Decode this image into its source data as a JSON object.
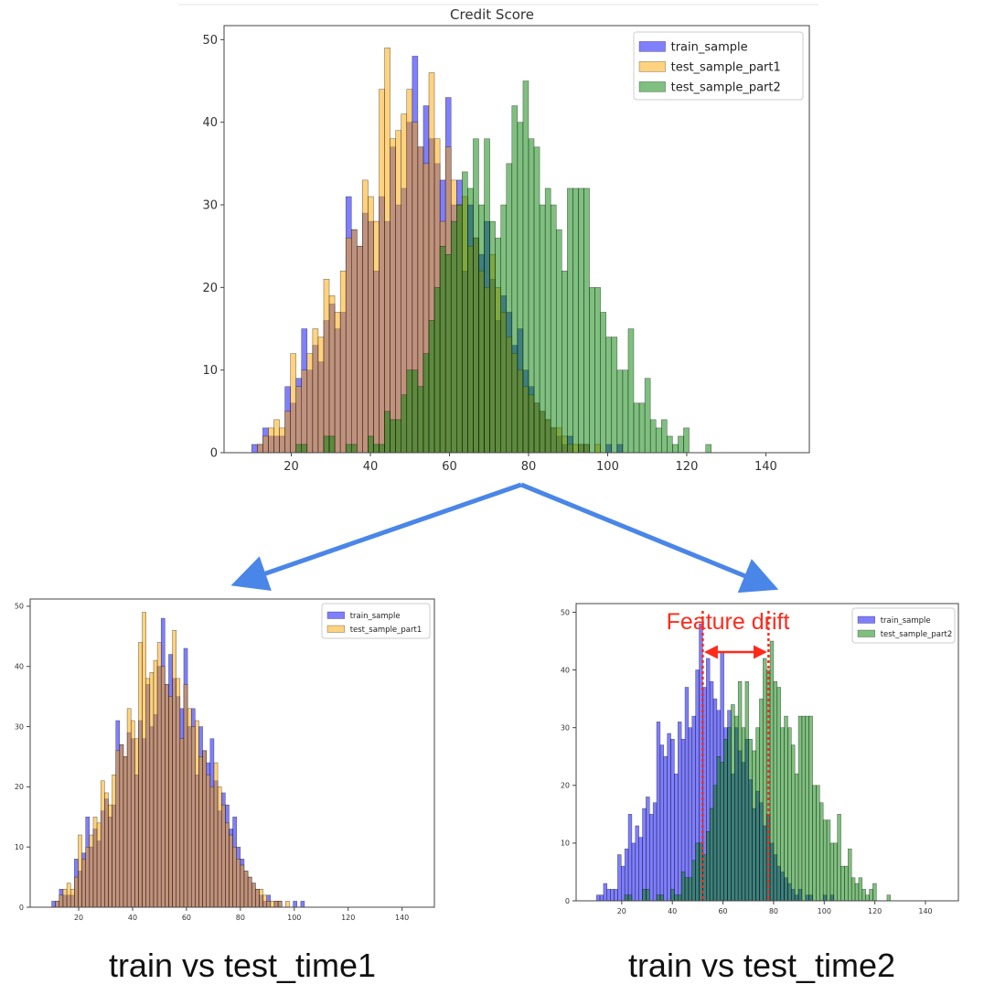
{
  "colors": {
    "train_sample": "#0000ff",
    "test_sample_part1": "#ffa500",
    "test_sample_part2": "#008000",
    "arrow": "#4a86e8",
    "drift": "#ff2a1a"
  },
  "series_data": {
    "bin_start": 10,
    "bin_width": 1.4,
    "train_sample": [
      1,
      1,
      3,
      2,
      2,
      2,
      8,
      6,
      9,
      15,
      10,
      13,
      11,
      16,
      18,
      15,
      17,
      31,
      27,
      25,
      29,
      28,
      22,
      31,
      28,
      37,
      30,
      32,
      40,
      48,
      37,
      42,
      38,
      35,
      33,
      43,
      30,
      33,
      22,
      30,
      26,
      24,
      28,
      21,
      16,
      19,
      17,
      13,
      15,
      10,
      8,
      6,
      5,
      4,
      3,
      2,
      1,
      2,
      0,
      1,
      1,
      0,
      0,
      0,
      1,
      0,
      1
    ],
    "test_sample_part1": [
      0,
      1,
      2,
      3,
      4,
      3,
      5,
      12,
      8,
      10,
      12,
      15,
      14,
      21,
      19,
      17,
      22,
      26,
      27,
      25,
      33,
      31,
      28,
      44,
      49,
      38,
      39,
      41,
      44,
      40,
      37,
      35,
      46,
      38,
      28,
      37,
      33,
      30,
      31,
      25,
      26,
      22,
      20,
      24,
      20,
      17,
      14,
      12,
      10,
      8,
      7,
      6,
      5,
      4,
      3,
      3,
      2,
      1,
      1,
      1,
      1,
      0,
      1
    ],
    "test_sample_part2": [
      0,
      0,
      0,
      0,
      0,
      0,
      0,
      0,
      1,
      1,
      0,
      0,
      0,
      2,
      2,
      0,
      0,
      1,
      1,
      0,
      0,
      2,
      1,
      1,
      5,
      4,
      4,
      7,
      10,
      10,
      8,
      12,
      16,
      20,
      25,
      24,
      28,
      30,
      34,
      32,
      38,
      30,
      38,
      28,
      26,
      30,
      35,
      42,
      40,
      45,
      38,
      37,
      30,
      32,
      30,
      27,
      22,
      32,
      32,
      32,
      32,
      20,
      20,
      17,
      14,
      14,
      10,
      10,
      15,
      6,
      6,
      9,
      4,
      3,
      4,
      2,
      1,
      2,
      3,
      0,
      0,
      0,
      1
    ]
  },
  "chart_data": [
    {
      "type": "bar",
      "title": "Credit Score",
      "series": [
        "train_sample",
        "test_sample_part1",
        "test_sample_part2"
      ],
      "legend": [
        "train_sample",
        "test_sample_part1",
        "test_sample_part2"
      ],
      "legend_position": "top-right",
      "xlim": [
        3,
        151
      ],
      "ylim": [
        0,
        51.7
      ],
      "xticks": [
        "20",
        "40",
        "60",
        "80",
        "100",
        "120",
        "140"
      ],
      "yticks": [
        "0",
        "10",
        "20",
        "30",
        "40",
        "50"
      ],
      "grid": false
    },
    {
      "type": "bar",
      "title": "",
      "series": [
        "train_sample",
        "test_sample_part1"
      ],
      "legend": [
        "train_sample",
        "test_sample_part1"
      ],
      "legend_position": "top-right",
      "xlim": [
        2,
        152
      ],
      "ylim": [
        0,
        51.2
      ],
      "xticks": [
        "20",
        "40",
        "60",
        "80",
        "100",
        "120",
        "140"
      ],
      "yticks": [
        "0",
        "10",
        "20",
        "30",
        "40",
        "50"
      ],
      "grid": false
    },
    {
      "type": "bar",
      "title": "",
      "series": [
        "train_sample",
        "test_sample_part2"
      ],
      "legend": [
        "train_sample",
        "test_sample_part2"
      ],
      "legend_position": "top-right",
      "xlim": [
        2,
        153
      ],
      "ylim": [
        0,
        51.5
      ],
      "xticks": [
        "20",
        "40",
        "60",
        "80",
        "100",
        "120",
        "140"
      ],
      "yticks": [
        "0",
        "10",
        "20",
        "30",
        "40",
        "50"
      ],
      "grid": false,
      "annotation": {
        "text": "Feature drift",
        "from": 52,
        "to": 78
      }
    }
  ],
  "captions": {
    "left": "train vs test_time1",
    "right": "train vs test_time2"
  }
}
